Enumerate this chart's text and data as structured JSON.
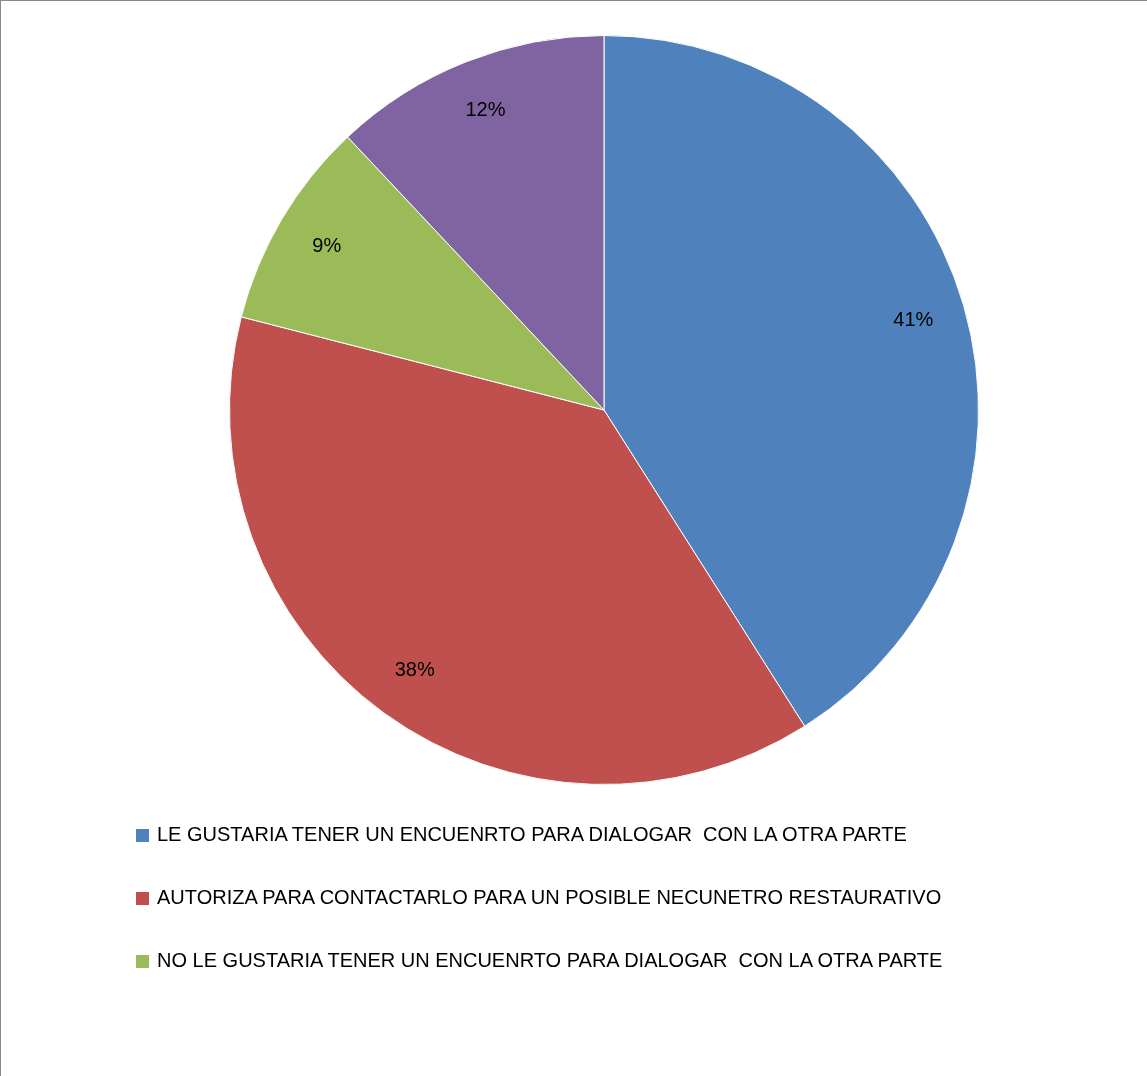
{
  "chart_data": {
    "type": "pie",
    "categories": [
      "LE GUSTARIA TENER UN ENCUENRTO PARA DIALOGAR  CON LA OTRA PARTE",
      "AUTORIZA PARA CONTACTARLO PARA UN POSIBLE NECUNETRO RESTAURATIVO",
      "NO LE GUSTARIA TENER UN ENCUENRTO PARA DIALOGAR  CON LA OTRA PARTE",
      null
    ],
    "values": [
      41,
      38,
      9,
      12
    ],
    "colors": [
      "#4f81bd",
      "#c0504d",
      "#9bbb59",
      "#8064a2"
    ],
    "value_labels": [
      "41%",
      "38%",
      "9%",
      "12%"
    ],
    "legend": "bottom"
  }
}
